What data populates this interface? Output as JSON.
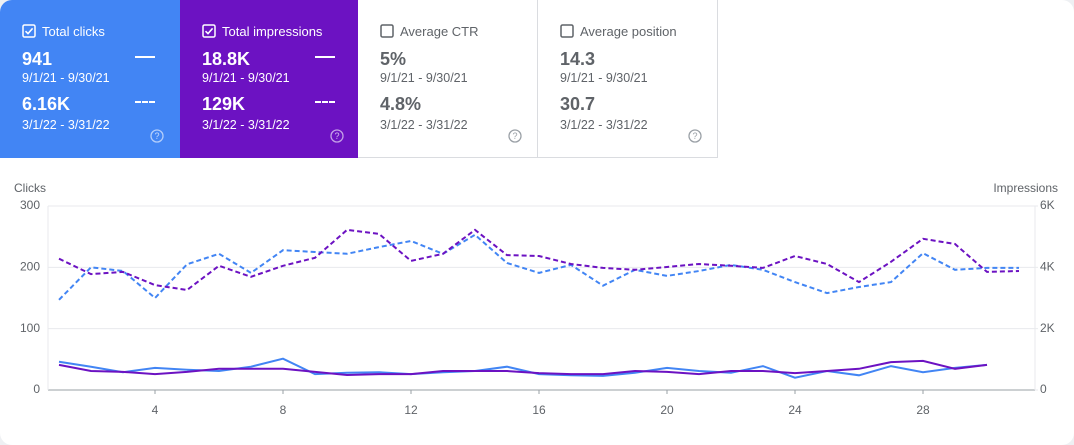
{
  "cards": [
    {
      "label": "Total clicks",
      "checked": true,
      "color": "#4285f4",
      "rows": [
        {
          "value": "941",
          "period": "9/1/21 - 9/30/21"
        },
        {
          "value": "6.16K",
          "period": "3/1/22 - 3/31/22"
        }
      ]
    },
    {
      "label": "Total impressions",
      "checked": true,
      "color": "#6c12c2",
      "rows": [
        {
          "value": "18.8K",
          "period": "9/1/21 - 9/30/21"
        },
        {
          "value": "129K",
          "period": "3/1/22 - 3/31/22"
        }
      ]
    },
    {
      "label": "Average CTR",
      "checked": false,
      "color": "#ffffff",
      "rows": [
        {
          "value": "5%",
          "period": "9/1/21 - 9/30/21"
        },
        {
          "value": "4.8%",
          "period": "3/1/22 - 3/31/22"
        }
      ]
    },
    {
      "label": "Average position",
      "checked": false,
      "color": "#ffffff",
      "rows": [
        {
          "value": "14.3",
          "period": "9/1/21 - 9/30/21"
        },
        {
          "value": "30.7",
          "period": "3/1/22 - 3/31/22"
        }
      ]
    }
  ],
  "chart_data": {
    "type": "line",
    "y_label": "Clicks",
    "y2_label": "Impressions",
    "x": [
      1,
      2,
      3,
      4,
      5,
      6,
      7,
      8,
      9,
      10,
      11,
      12,
      13,
      14,
      15,
      16,
      17,
      18,
      19,
      20,
      21,
      22,
      23,
      24,
      25,
      26,
      27,
      28,
      29,
      30,
      31
    ],
    "xlim": [
      1,
      31
    ],
    "xticks": [
      4,
      8,
      12,
      16,
      20,
      24,
      28
    ],
    "ylim": [
      0,
      300
    ],
    "yticks": [
      0,
      100,
      200,
      300
    ],
    "y2lim": [
      0,
      6000
    ],
    "y2ticks": [
      0,
      {
        "value": 2000,
        "label": "2K"
      },
      {
        "value": 4000,
        "label": "4K"
      },
      {
        "value": 6000,
        "label": "6K"
      }
    ],
    "grid": true,
    "series": [
      {
        "color": "#4285f4",
        "dashed": true,
        "values": [
          147,
          200,
          194,
          150,
          205,
          222,
          191,
          228,
          225,
          222,
          233,
          243,
          222,
          253,
          207,
          191,
          204,
          170,
          196,
          186,
          194,
          204,
          196,
          176,
          158,
          168,
          176,
          223,
          196,
          199,
          199
        ]
      },
      {
        "color": "#6c12c2",
        "dashed": true,
        "axis": "y2",
        "values": [
          4280,
          3780,
          3850,
          3420,
          3260,
          4050,
          3690,
          4050,
          4310,
          5220,
          5090,
          4210,
          4440,
          5220,
          4400,
          4370,
          4110,
          3980,
          3920,
          4010,
          4110,
          4050,
          3980,
          4370,
          4110,
          3520,
          4180,
          4930,
          4760,
          3850,
          3880
        ]
      },
      {
        "color": "#4285f4",
        "dashed": false,
        "values": [
          46,
          38,
          29,
          36,
          33,
          31,
          38,
          51,
          26,
          28,
          29,
          26,
          29,
          31,
          38,
          26,
          24,
          23,
          28,
          36,
          31,
          28,
          39,
          20,
          31,
          24,
          39,
          29,
          36,
          41,
          null
        ]
      },
      {
        "color": "#6c12c2",
        "dashed": false,
        "axis": "y2",
        "values": [
          820,
          620,
          590,
          520,
          590,
          690,
          690,
          690,
          590,
          490,
          520,
          520,
          620,
          620,
          620,
          550,
          520,
          520,
          620,
          590,
          520,
          620,
          620,
          550,
          620,
          690,
          910,
          950,
          690,
          820,
          null
        ]
      }
    ]
  }
}
